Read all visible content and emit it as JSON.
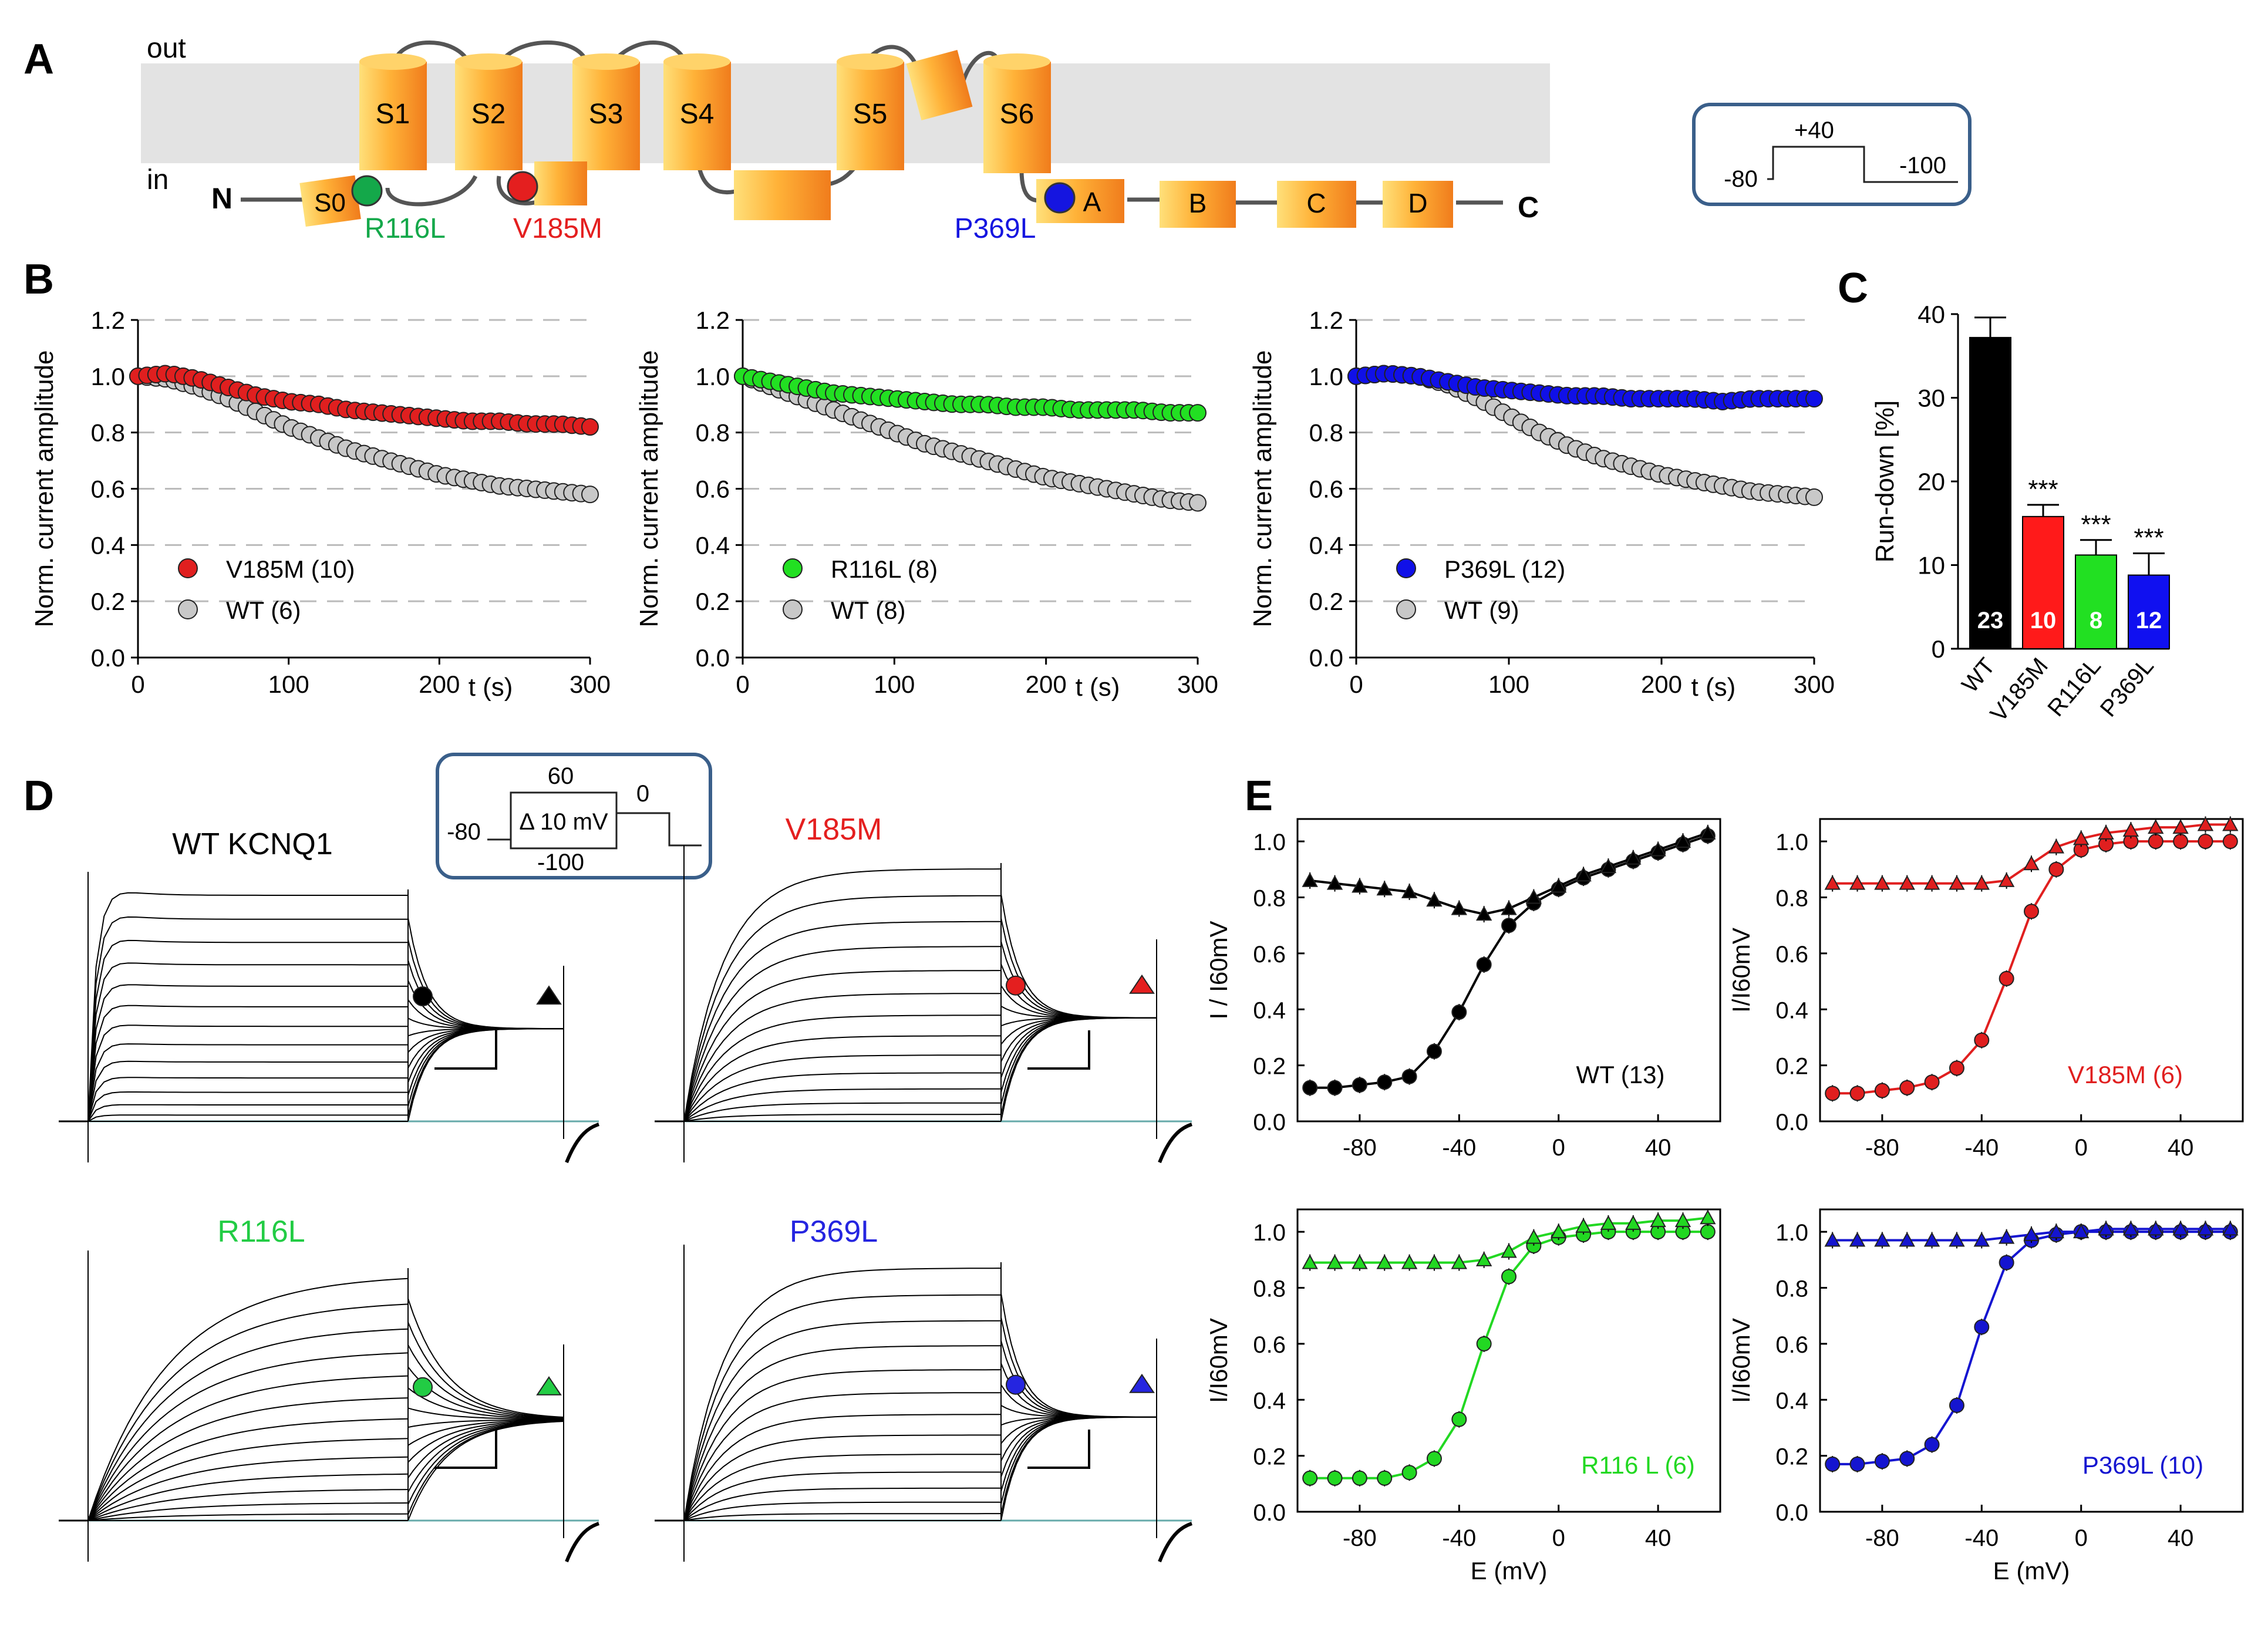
{
  "panel_letters": {
    "A": "A",
    "B": "B",
    "C": "C",
    "D": "D",
    "E": "E"
  },
  "panelA": {
    "out_label": "out",
    "in_label": "in",
    "n_label": "N",
    "c_label": "C",
    "segments": [
      "S0",
      "S1",
      "S2",
      "S3",
      "S4",
      "S5",
      "S6"
    ],
    "helices": [
      "A",
      "B",
      "C",
      "D"
    ],
    "mutations": [
      {
        "label": "R116L",
        "color": "#14a84a"
      },
      {
        "label": "V185M",
        "color": "#e41f1f"
      },
      {
        "label": "P369L",
        "color": "#1515e0"
      }
    ],
    "protocol": {
      "v_hold": "-80",
      "v_step": "+40",
      "v_tail": "-100"
    }
  },
  "panelB": {
    "y_axis_label": "Norm. current amplitude",
    "x_axis_label": "t (s)",
    "y_ticks": [
      "0.0",
      "0.2",
      "0.4",
      "0.6",
      "0.8",
      "1.0",
      "1.2"
    ],
    "x_ticks": [
      "0",
      "100",
      "200",
      "300"
    ]
  },
  "chart_data": [
    {
      "type": "scatter",
      "panel": "B-1",
      "xlabel": "t (s)",
      "ylabel": "Norm. current amplitude",
      "xlim": [
        0,
        300
      ],
      "ylim": [
        0,
        1.2
      ],
      "series": [
        {
          "name": "V185M",
          "legend": "V185M (10)",
          "color": "#e01f1f",
          "x": [
            0,
            20,
            40,
            60,
            80,
            100,
            120,
            140,
            160,
            180,
            200,
            220,
            240,
            260,
            280,
            300
          ],
          "y": [
            1.0,
            1.01,
            0.99,
            0.96,
            0.93,
            0.91,
            0.9,
            0.88,
            0.87,
            0.86,
            0.85,
            0.84,
            0.84,
            0.83,
            0.83,
            0.82
          ]
        },
        {
          "name": "WT",
          "legend": "WT    (6)",
          "color": "#c8c8c8",
          "x": [
            0,
            20,
            40,
            60,
            80,
            100,
            120,
            140,
            160,
            180,
            200,
            220,
            240,
            260,
            280,
            300
          ],
          "y": [
            1.0,
            0.99,
            0.96,
            0.92,
            0.87,
            0.82,
            0.78,
            0.74,
            0.71,
            0.68,
            0.65,
            0.63,
            0.61,
            0.6,
            0.59,
            0.58
          ]
        }
      ]
    },
    {
      "type": "scatter",
      "panel": "B-2",
      "xlabel": "t (s)",
      "ylabel": "Norm. current amplitude",
      "xlim": [
        0,
        300
      ],
      "ylim": [
        0,
        1.2
      ],
      "series": [
        {
          "name": "R116L",
          "legend": "R116L   (8)",
          "color": "#22e022",
          "x": [
            0,
            20,
            40,
            60,
            80,
            100,
            120,
            140,
            160,
            180,
            200,
            220,
            240,
            260,
            280,
            300
          ],
          "y": [
            1.0,
            0.98,
            0.96,
            0.94,
            0.93,
            0.92,
            0.91,
            0.9,
            0.9,
            0.89,
            0.89,
            0.88,
            0.88,
            0.88,
            0.87,
            0.87
          ]
        },
        {
          "name": "WT",
          "legend": "WT     (8)",
          "color": "#c8c8c8",
          "x": [
            0,
            20,
            40,
            60,
            80,
            100,
            120,
            140,
            160,
            180,
            200,
            220,
            240,
            260,
            280,
            300
          ],
          "y": [
            1.0,
            0.96,
            0.92,
            0.88,
            0.84,
            0.8,
            0.76,
            0.73,
            0.7,
            0.67,
            0.64,
            0.62,
            0.6,
            0.58,
            0.56,
            0.55
          ]
        }
      ]
    },
    {
      "type": "scatter",
      "panel": "B-3",
      "xlabel": "t (s)",
      "ylabel": "Norm. current amplitude",
      "xlim": [
        0,
        300
      ],
      "ylim": [
        0,
        1.2
      ],
      "series": [
        {
          "name": "P369L",
          "legend": "P369L   (12)",
          "color": "#1010e8",
          "x": [
            0,
            20,
            40,
            60,
            80,
            100,
            120,
            140,
            160,
            180,
            200,
            220,
            240,
            260,
            280,
            300
          ],
          "y": [
            1.0,
            1.01,
            1.0,
            0.98,
            0.96,
            0.95,
            0.94,
            0.93,
            0.93,
            0.92,
            0.92,
            0.92,
            0.91,
            0.92,
            0.92,
            0.92
          ]
        },
        {
          "name": "WT",
          "legend": "WT     (9)",
          "color": "#c8c8c8",
          "x": [
            0,
            20,
            40,
            60,
            80,
            100,
            120,
            140,
            160,
            180,
            200,
            220,
            240,
            260,
            280,
            300
          ],
          "y": [
            1.0,
            1.01,
            1.0,
            0.97,
            0.92,
            0.86,
            0.8,
            0.75,
            0.71,
            0.68,
            0.65,
            0.63,
            0.61,
            0.59,
            0.58,
            0.57
          ]
        }
      ]
    },
    {
      "type": "bar",
      "panel": "C",
      "ylabel": "Run-down  [%]",
      "ylim": [
        0,
        40
      ],
      "y_ticks": [
        "0",
        "10",
        "20",
        "30",
        "40"
      ],
      "categories": [
        "WT",
        "V185M",
        "R116L",
        "P369L"
      ],
      "values": [
        37.2,
        15.8,
        11.2,
        8.8
      ],
      "errors": [
        2.4,
        1.4,
        1.8,
        2.6
      ],
      "n": [
        "23",
        "10",
        "8",
        "12"
      ],
      "significance": [
        "",
        "***",
        "***",
        "***"
      ],
      "colors": [
        "#000000",
        "#ff1a1a",
        "#22e022",
        "#1010f0"
      ]
    },
    {
      "type": "scatter",
      "panel": "E-WT",
      "xlabel": "",
      "ylabel": "I / I60mV",
      "xlim": [
        -105,
        65
      ],
      "ylim": [
        0,
        1.08
      ],
      "x_ticks": [
        "-80",
        "-40",
        "0",
        "40"
      ],
      "y_ticks": [
        "0.0",
        "0.2",
        "0.4",
        "0.6",
        "0.8",
        "1.0"
      ],
      "label": "WT  (13)",
      "color": "#000000",
      "series": [
        {
          "name": "activation",
          "x": [
            -100,
            -90,
            -80,
            -70,
            -60,
            -50,
            -40,
            -30,
            -20,
            -10,
            0,
            10,
            20,
            30,
            40,
            50,
            60
          ],
          "y": [
            0.12,
            0.12,
            0.13,
            0.14,
            0.16,
            0.25,
            0.39,
            0.56,
            0.7,
            0.78,
            0.83,
            0.87,
            0.9,
            0.93,
            0.96,
            0.99,
            1.02
          ]
        },
        {
          "name": "inactivation",
          "x": [
            -100,
            -90,
            -80,
            -70,
            -60,
            -50,
            -40,
            -30,
            -20,
            -10,
            0,
            10,
            20,
            30,
            40,
            50,
            60
          ],
          "y": [
            0.86,
            0.85,
            0.84,
            0.83,
            0.82,
            0.79,
            0.76,
            0.74,
            0.76,
            0.8,
            0.84,
            0.88,
            0.91,
            0.94,
            0.97,
            1.0,
            1.03
          ]
        }
      ]
    },
    {
      "type": "scatter",
      "panel": "E-V185M",
      "xlabel": "",
      "ylabel": "I/I60mV",
      "xlim": [
        -105,
        65
      ],
      "ylim": [
        0,
        1.08
      ],
      "x_ticks": [
        "-80",
        "-40",
        "0",
        "40"
      ],
      "y_ticks": [
        "0.0",
        "0.2",
        "0.4",
        "0.6",
        "0.8",
        "1.0"
      ],
      "label": "V185M  (6)",
      "color": "#e01f1f",
      "series": [
        {
          "name": "activation",
          "x": [
            -100,
            -90,
            -80,
            -70,
            -60,
            -50,
            -40,
            -30,
            -20,
            -10,
            0,
            10,
            20,
            30,
            40,
            50,
            60
          ],
          "y": [
            0.1,
            0.1,
            0.11,
            0.12,
            0.14,
            0.19,
            0.29,
            0.51,
            0.75,
            0.9,
            0.97,
            0.99,
            1.0,
            1.0,
            1.0,
            1.0,
            1.0
          ]
        },
        {
          "name": "inactivation",
          "x": [
            -100,
            -90,
            -80,
            -70,
            -60,
            -50,
            -40,
            -30,
            -20,
            -10,
            0,
            10,
            20,
            30,
            40,
            50,
            60
          ],
          "y": [
            0.85,
            0.85,
            0.85,
            0.85,
            0.85,
            0.85,
            0.85,
            0.86,
            0.92,
            0.98,
            1.01,
            1.03,
            1.04,
            1.05,
            1.05,
            1.06,
            1.06
          ]
        }
      ]
    },
    {
      "type": "scatter",
      "panel": "E-R116L",
      "xlabel": "E (mV)",
      "ylabel": "I/I60mV",
      "xlim": [
        -105,
        65
      ],
      "ylim": [
        0,
        1.08
      ],
      "x_ticks": [
        "-80",
        "-40",
        "0",
        "40"
      ],
      "y_ticks": [
        "0.0",
        "0.2",
        "0.4",
        "0.6",
        "0.8",
        "1.0"
      ],
      "label": "R116 L (6)",
      "color": "#22d822",
      "series": [
        {
          "name": "activation",
          "x": [
            -100,
            -90,
            -80,
            -70,
            -60,
            -50,
            -40,
            -30,
            -20,
            -10,
            0,
            10,
            20,
            30,
            40,
            50,
            60
          ],
          "y": [
            0.12,
            0.12,
            0.12,
            0.12,
            0.14,
            0.19,
            0.33,
            0.6,
            0.84,
            0.95,
            0.98,
            0.99,
            1.0,
            1.0,
            1.0,
            1.0,
            1.0
          ]
        },
        {
          "name": "inactivation",
          "x": [
            -100,
            -90,
            -80,
            -70,
            -60,
            -50,
            -40,
            -30,
            -20,
            -10,
            0,
            10,
            20,
            30,
            40,
            50,
            60
          ],
          "y": [
            0.89,
            0.89,
            0.89,
            0.89,
            0.89,
            0.89,
            0.89,
            0.9,
            0.93,
            0.98,
            1.0,
            1.02,
            1.03,
            1.03,
            1.04,
            1.04,
            1.05
          ]
        }
      ]
    },
    {
      "type": "scatter",
      "panel": "E-P369L",
      "xlabel": "E (mV)",
      "ylabel": "I/I60mV",
      "xlim": [
        -105,
        65
      ],
      "ylim": [
        0,
        1.08
      ],
      "x_ticks": [
        "-80",
        "-40",
        "0",
        "40"
      ],
      "y_ticks": [
        "0.0",
        "0.2",
        "0.4",
        "0.6",
        "0.8",
        "1.0"
      ],
      "label": "P369L  (10)",
      "color": "#1515d0",
      "series": [
        {
          "name": "activation",
          "x": [
            -100,
            -90,
            -80,
            -70,
            -60,
            -50,
            -40,
            -30,
            -20,
            -10,
            0,
            10,
            20,
            30,
            40,
            50,
            60
          ],
          "y": [
            0.17,
            0.17,
            0.18,
            0.19,
            0.24,
            0.38,
            0.66,
            0.89,
            0.97,
            0.99,
            1.0,
            1.0,
            1.0,
            1.0,
            1.0,
            1.0,
            1.0
          ]
        },
        {
          "name": "inactivation",
          "x": [
            -100,
            -90,
            -80,
            -70,
            -60,
            -50,
            -40,
            -30,
            -20,
            -10,
            0,
            10,
            20,
            30,
            40,
            50,
            60
          ],
          "y": [
            0.97,
            0.97,
            0.97,
            0.97,
            0.97,
            0.97,
            0.97,
            0.98,
            0.99,
            1.0,
            1.0,
            1.01,
            1.01,
            1.01,
            1.01,
            1.01,
            1.01
          ]
        }
      ]
    }
  ],
  "panelD": {
    "protocol": {
      "v_top": "60",
      "v_hold": "-80",
      "v_step": "Δ 10 mV",
      "v_bottom": "-100",
      "v_tail": "0"
    },
    "traces": [
      {
        "title": "WT KCNQ1",
        "color": "#000000",
        "kind": "wt"
      },
      {
        "title": "V185M",
        "color": "#e41f1f",
        "kind": "fast"
      },
      {
        "title": "R116L",
        "color": "#22cc44",
        "kind": "slow"
      },
      {
        "title": "P369L",
        "color": "#2525e0",
        "kind": "fast"
      }
    ]
  }
}
